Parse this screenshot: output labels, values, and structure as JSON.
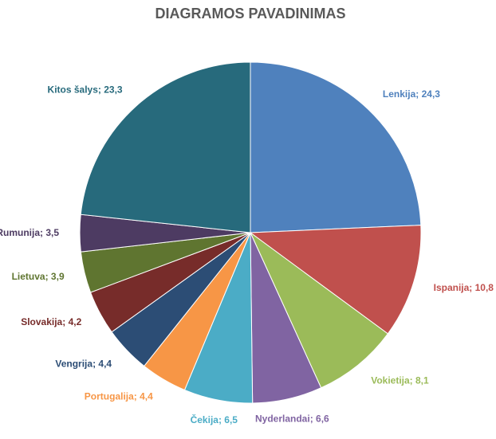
{
  "chart_data": {
    "type": "pie",
    "title": "DIAGRAMOS PAVADINIMAS",
    "values": [
      24.3,
      10.8,
      8.1,
      6.6,
      6.5,
      4.4,
      4.4,
      4.2,
      3.9,
      3.5,
      23.3
    ],
    "value_labels": [
      "Lenkija; 24,3",
      "Ispanija; 10,8",
      "Vokietija; 8,1",
      "Nyderlandai; 6,6",
      "Čekija; 6,5",
      "Portugalija; 4,4",
      "Vengrija; 4,4",
      "Slovakija; 4,2",
      "Lietuva; 3,9",
      "Rumunija; 3,5",
      "Kitos šalys; 23,3"
    ],
    "colors": [
      "#4f81bd",
      "#c0504d",
      "#9bbb59",
      "#8064a2",
      "#4bacc6",
      "#f79646",
      "#2c4d75",
      "#772c2a",
      "#5f7530",
      "#4d3b62",
      "#276a7c"
    ]
  }
}
